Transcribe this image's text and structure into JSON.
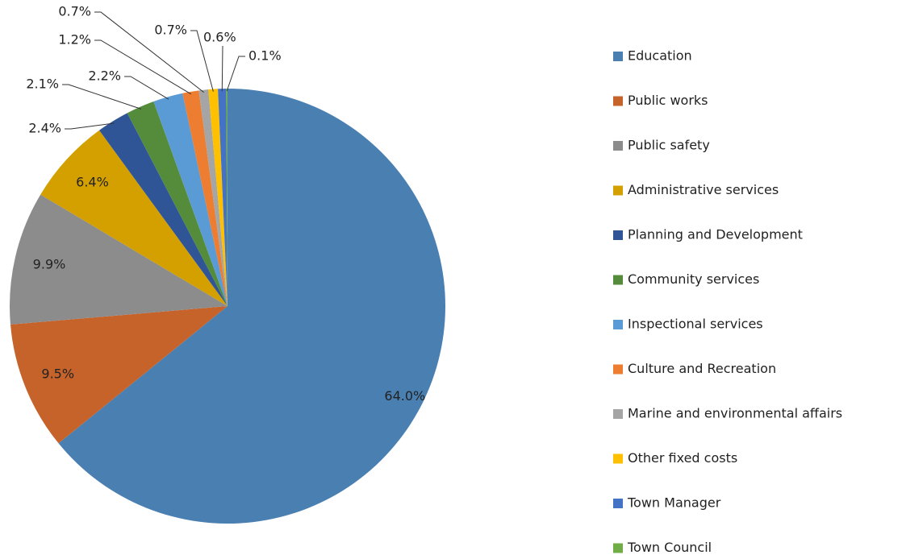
{
  "chart_data": {
    "type": "pie",
    "categories": [
      "Education",
      "Public works",
      "Public safety",
      "Administrative services",
      "Planning and Development",
      "Community services",
      "Inspectional services",
      "Culture and Recreation",
      "Marine and environmental affairs",
      "Other fixed costs",
      "Town Manager",
      "Town Council"
    ],
    "values": [
      64.0,
      9.5,
      9.9,
      6.4,
      2.4,
      2.1,
      2.2,
      1.2,
      0.7,
      0.7,
      0.6,
      0.1
    ],
    "value_labels": [
      "64.0%",
      "9.5%",
      "9.9%",
      "6.4%",
      "2.4%",
      "2.1%",
      "2.2%",
      "1.2%",
      "0.7%",
      "0.7%",
      "0.6%",
      "0.1%"
    ],
    "colors": [
      "#4a7fb2",
      "#c6632b",
      "#8c8c8c",
      "#d4a000",
      "#2f5597",
      "#548c3c",
      "#5b9bd5",
      "#ed7d31",
      "#a5a5a5",
      "#ffc000",
      "#4472c4",
      "#70ad47"
    ],
    "legend": "right"
  }
}
